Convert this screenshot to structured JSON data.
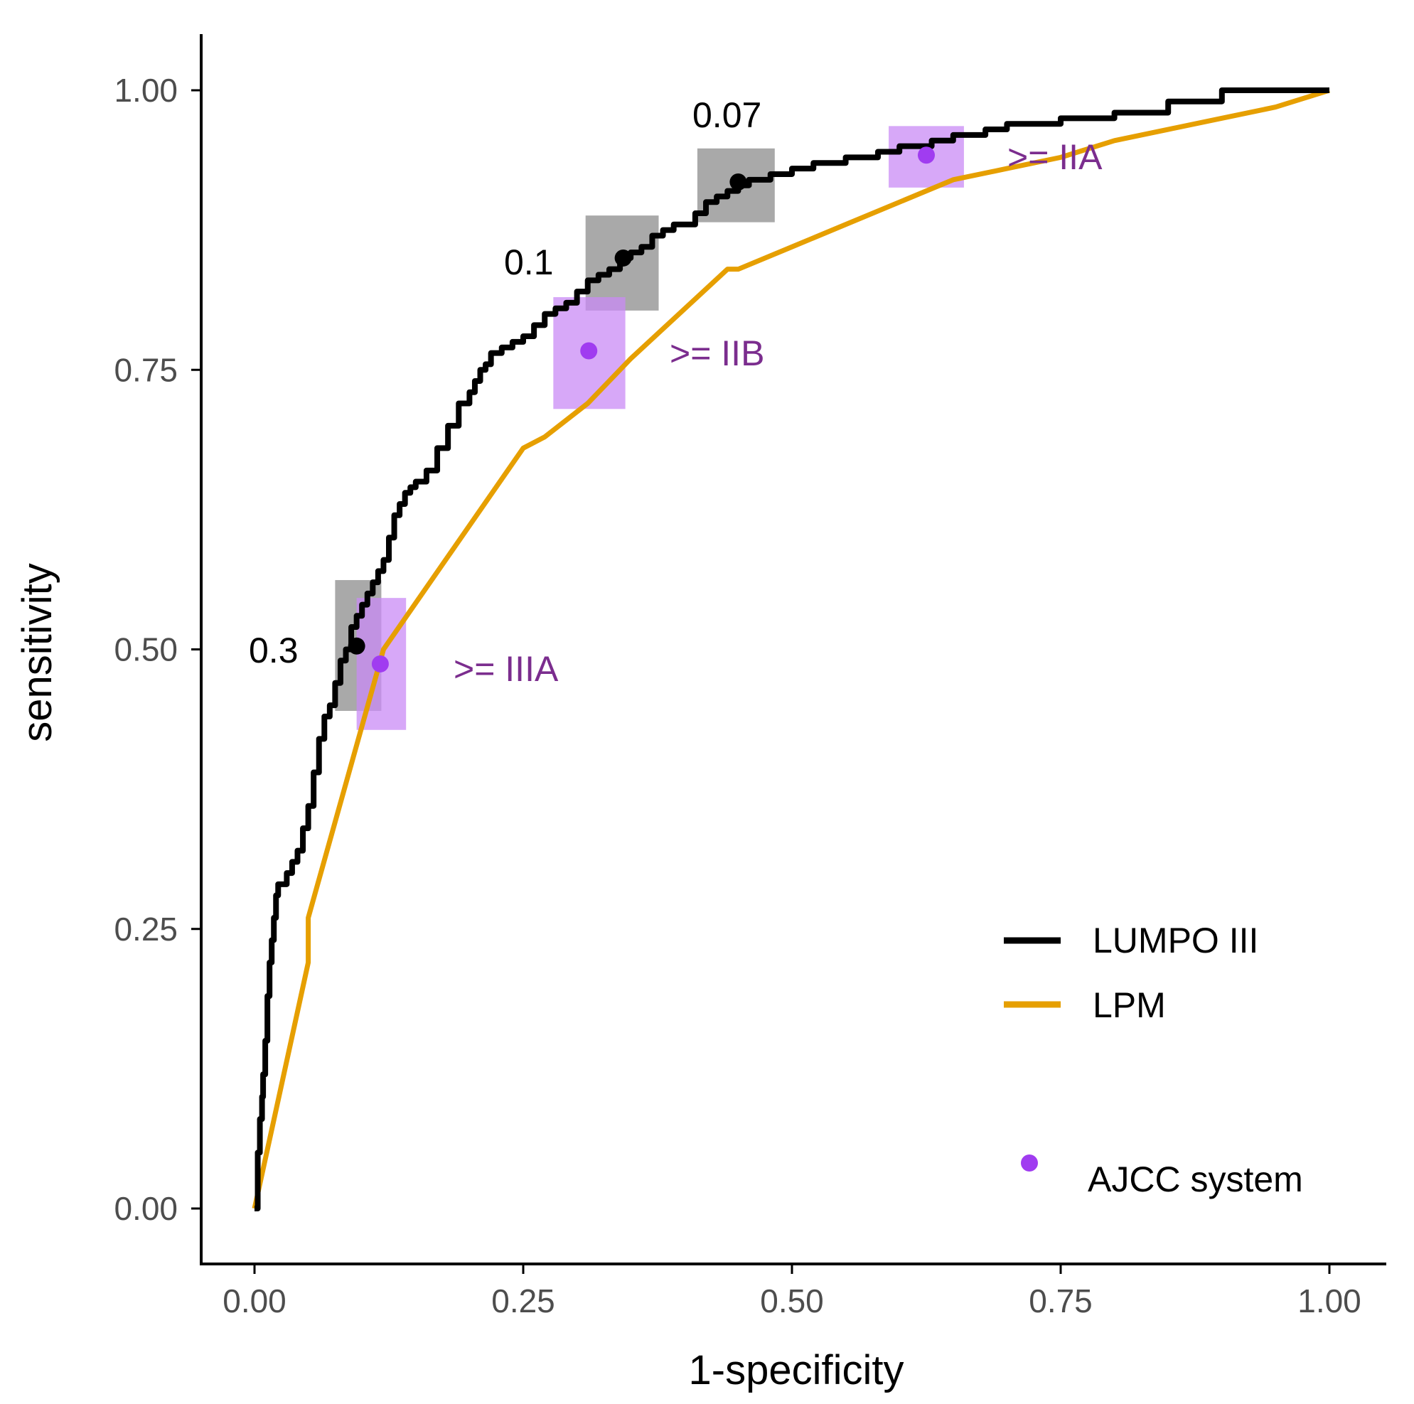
{
  "chart_data": {
    "type": "line",
    "xlabel": "1-specificity",
    "ylabel": "sensitivity",
    "xlim": [
      -0.05,
      1.05
    ],
    "ylim": [
      -0.05,
      1.05
    ],
    "x_ticks": [
      "0.00",
      "0.25",
      "0.50",
      "0.75",
      "1.00"
    ],
    "y_ticks": [
      "0.00",
      "0.25",
      "0.50",
      "0.75",
      "1.00"
    ],
    "grid": false,
    "legend_position": "bottom-right",
    "series": [
      {
        "name": "LUMPO III",
        "color": "#000000",
        "x": [
          0,
          0.003,
          0.005,
          0.007,
          0.008,
          0.01,
          0.012,
          0.014,
          0.016,
          0.018,
          0.02,
          0.022,
          0.025,
          0.03,
          0.035,
          0.04,
          0.045,
          0.05,
          0.055,
          0.06,
          0.065,
          0.07,
          0.075,
          0.08,
          0.085,
          0.09,
          0.095,
          0.1,
          0.105,
          0.11,
          0.115,
          0.12,
          0.125,
          0.13,
          0.135,
          0.14,
          0.145,
          0.15,
          0.16,
          0.17,
          0.18,
          0.19,
          0.2,
          0.205,
          0.21,
          0.215,
          0.22,
          0.23,
          0.24,
          0.25,
          0.26,
          0.27,
          0.28,
          0.29,
          0.3,
          0.31,
          0.32,
          0.33,
          0.34,
          0.35,
          0.36,
          0.37,
          0.38,
          0.39,
          0.4,
          0.41,
          0.42,
          0.43,
          0.44,
          0.45,
          0.46,
          0.48,
          0.5,
          0.52,
          0.55,
          0.58,
          0.6,
          0.63,
          0.65,
          0.68,
          0.7,
          0.75,
          0.8,
          0.85,
          0.9,
          0.95,
          1.0
        ],
        "y": [
          0,
          0.05,
          0.08,
          0.1,
          0.12,
          0.15,
          0.19,
          0.22,
          0.24,
          0.26,
          0.28,
          0.29,
          0.29,
          0.3,
          0.31,
          0.32,
          0.34,
          0.36,
          0.39,
          0.42,
          0.44,
          0.45,
          0.47,
          0.49,
          0.5,
          0.52,
          0.53,
          0.54,
          0.55,
          0.56,
          0.57,
          0.58,
          0.6,
          0.62,
          0.63,
          0.64,
          0.645,
          0.65,
          0.66,
          0.68,
          0.7,
          0.72,
          0.73,
          0.74,
          0.75,
          0.755,
          0.765,
          0.77,
          0.775,
          0.78,
          0.79,
          0.8,
          0.805,
          0.81,
          0.82,
          0.83,
          0.835,
          0.84,
          0.85,
          0.855,
          0.86,
          0.87,
          0.875,
          0.88,
          0.88,
          0.89,
          0.9,
          0.905,
          0.91,
          0.915,
          0.92,
          0.925,
          0.93,
          0.935,
          0.94,
          0.945,
          0.95,
          0.955,
          0.96,
          0.965,
          0.97,
          0.975,
          0.98,
          0.99,
          1.0,
          1.0,
          1.0
        ]
      },
      {
        "name": "LPM",
        "color": "#E69F00",
        "x": [
          0,
          0.05,
          0.05,
          0.12,
          0.25,
          0.27,
          0.31,
          0.35,
          0.44,
          0.45,
          0.5,
          0.55,
          0.6,
          0.65,
          0.7,
          0.75,
          0.8,
          0.85,
          0.9,
          0.95,
          1.0
        ],
        "y": [
          0,
          0.22,
          0.26,
          0.5,
          0.68,
          0.69,
          0.72,
          0.76,
          0.84,
          0.84,
          0.86,
          0.88,
          0.9,
          0.92,
          0.93,
          0.94,
          0.955,
          0.965,
          0.975,
          0.985,
          1.0
        ]
      }
    ],
    "threshold_points": [
      {
        "label": "0.3",
        "x": 0.095,
        "y": 0.503,
        "x_lo": 0.075,
        "x_hi": 0.118,
        "y_lo": 0.445,
        "y_hi": 0.562
      },
      {
        "label": "0.1",
        "x": 0.343,
        "y": 0.85,
        "x_lo": 0.308,
        "x_hi": 0.376,
        "y_lo": 0.803,
        "y_hi": 0.888
      },
      {
        "label": "0.07",
        "x": 0.45,
        "y": 0.918,
        "x_lo": 0.412,
        "x_hi": 0.484,
        "y_lo": 0.882,
        "y_hi": 0.948
      }
    ],
    "ajcc_points": [
      {
        "label": ">= IIIA",
        "x": 0.117,
        "y": 0.487,
        "x_lo": 0.095,
        "x_hi": 0.141,
        "y_lo": 0.428,
        "y_hi": 0.546
      },
      {
        "label": ">= IIB",
        "x": 0.311,
        "y": 0.767,
        "x_lo": 0.278,
        "x_hi": 0.345,
        "y_lo": 0.715,
        "y_hi": 0.815
      },
      {
        "label": ">= IIA",
        "x": 0.625,
        "y": 0.942,
        "x_lo": 0.59,
        "x_hi": 0.66,
        "y_lo": 0.913,
        "y_hi": 0.968
      }
    ],
    "legend": {
      "lines": [
        "LUMPO III",
        "LPM"
      ],
      "point": "AJCC system"
    },
    "colors": {
      "lumpo": "#000000",
      "lpm": "#E69F00",
      "ajcc": "#A03CF0",
      "ajcc_text": "#7B2D8E",
      "ajcc_box": "#C98BF5",
      "threshold_box": "#9A9A9A"
    }
  }
}
